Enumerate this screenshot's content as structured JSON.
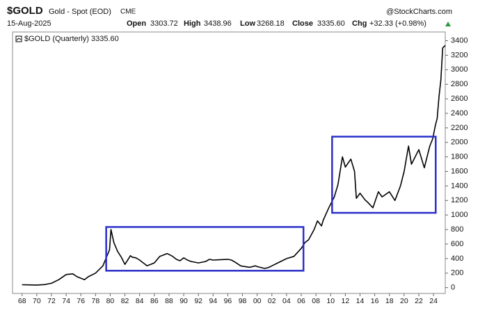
{
  "header": {
    "symbol": "$GOLD",
    "description": "Gold - Spot (EOD)",
    "exchange": "CME",
    "source": "@StockCharts.com",
    "date": "15-Aug-2025",
    "open_label": "Open",
    "open": "3303.72",
    "high_label": "High",
    "high": "3438.96",
    "low_label": "Low",
    "low": "3268.18",
    "close_label": "Close",
    "close": "3335.60",
    "chg_label": "Chg",
    "chg": "+32.33 (+0.98%)"
  },
  "chart_data": {
    "type": "line",
    "x": [
      1968,
      1969,
      1970,
      1971,
      1972,
      1973,
      1974,
      1974.9,
      1975.5,
      1976.5,
      1977,
      1978,
      1979,
      1979.9,
      1980.1,
      1980.5,
      1981,
      1981.5,
      1982,
      1982.75,
      1983,
      1983.5,
      1984,
      1984.5,
      1985,
      1985.5,
      1986,
      1986.75,
      1987.75,
      1988.5,
      1989,
      1989.5,
      1990,
      1990.5,
      1991,
      1992,
      1993,
      1993.5,
      1994,
      1995,
      1996,
      1996.5,
      1997,
      1997.75,
      1998,
      1999,
      1999.75,
      2000,
      2001,
      2001.5,
      2002,
      2003,
      2004,
      2005,
      2006,
      2006.5,
      2007,
      2007.75,
      2008.2,
      2008.75,
      2009,
      2009.75,
      2010.5,
      2011,
      2011.6,
      2012,
      2012.75,
      2013.25,
      2013.5,
      2014,
      2014.75,
      2015,
      2015.75,
      2016.5,
      2017,
      2018,
      2018.75,
      2019.5,
      2020,
      2020.6,
      2021,
      2022,
      2022.75,
      2023.5,
      2023.9,
      2024.25,
      2024.5,
      2024.75,
      2025,
      2025.25,
      2025.6
    ],
    "series": [
      {
        "name": "$GOLD (Quarterly) 3335.60",
        "color": "#000000",
        "values": [
          40,
          38,
          36,
          42,
          60,
          110,
          180,
          190,
          150,
          110,
          150,
          200,
          300,
          520,
          800,
          620,
          500,
          420,
          320,
          440,
          420,
          410,
          380,
          340,
          300,
          320,
          340,
          430,
          470,
          430,
          390,
          370,
          410,
          380,
          360,
          340,
          360,
          390,
          380,
          385,
          390,
          380,
          350,
          300,
          295,
          280,
          300,
          290,
          265,
          275,
          300,
          350,
          400,
          430,
          540,
          620,
          660,
          800,
          920,
          850,
          930,
          1100,
          1250,
          1420,
          1800,
          1660,
          1770,
          1600,
          1230,
          1300,
          1200,
          1180,
          1100,
          1320,
          1250,
          1320,
          1200,
          1400,
          1600,
          1950,
          1700,
          1900,
          1650,
          1950,
          2050,
          2230,
          2330,
          2630,
          2860,
          3300,
          3335.6
        ]
      }
    ],
    "xlim": [
      1966.7,
      2025.6
    ],
    "xticks": [
      {
        "value": 1968,
        "label": "68"
      },
      {
        "value": 1970,
        "label": "70"
      },
      {
        "value": 1972,
        "label": "72"
      },
      {
        "value": 1974,
        "label": "74"
      },
      {
        "value": 1976,
        "label": "76"
      },
      {
        "value": 1978,
        "label": "78"
      },
      {
        "value": 1980,
        "label": "80"
      },
      {
        "value": 1982,
        "label": "82"
      },
      {
        "value": 1984,
        "label": "84"
      },
      {
        "value": 1986,
        "label": "86"
      },
      {
        "value": 1988,
        "label": "88"
      },
      {
        "value": 1990,
        "label": "90"
      },
      {
        "value": 1992,
        "label": "92"
      },
      {
        "value": 1994,
        "label": "94"
      },
      {
        "value": 1996,
        "label": "96"
      },
      {
        "value": 1998,
        "label": "98"
      },
      {
        "value": 2000,
        "label": "00"
      },
      {
        "value": 2002,
        "label": "02"
      },
      {
        "value": 2004,
        "label": "04"
      },
      {
        "value": 2006,
        "label": "06"
      },
      {
        "value": 2008,
        "label": "08"
      },
      {
        "value": 2010,
        "label": "10"
      },
      {
        "value": 2012,
        "label": "12"
      },
      {
        "value": 2014,
        "label": "14"
      },
      {
        "value": 2016,
        "label": "16"
      },
      {
        "value": 2018,
        "label": "18"
      },
      {
        "value": 2020,
        "label": "20"
      },
      {
        "value": 2022,
        "label": "22"
      },
      {
        "value": 2024,
        "label": "24"
      }
    ],
    "ylim": [
      -80,
      3520
    ],
    "yticks": [
      0,
      200,
      400,
      600,
      800,
      1000,
      1200,
      1400,
      1600,
      1800,
      2000,
      2200,
      2400,
      2600,
      2800,
      3000,
      3200,
      3400
    ],
    "boxes": [
      {
        "x": [
          1979.45,
          2006.3
        ],
        "y": [
          233,
          835
        ],
        "color": "#2a2fc8"
      },
      {
        "x": [
          2010.2,
          2024.3
        ],
        "y": [
          1030,
          2079
        ],
        "color": "#2a2fc8"
      }
    ]
  }
}
